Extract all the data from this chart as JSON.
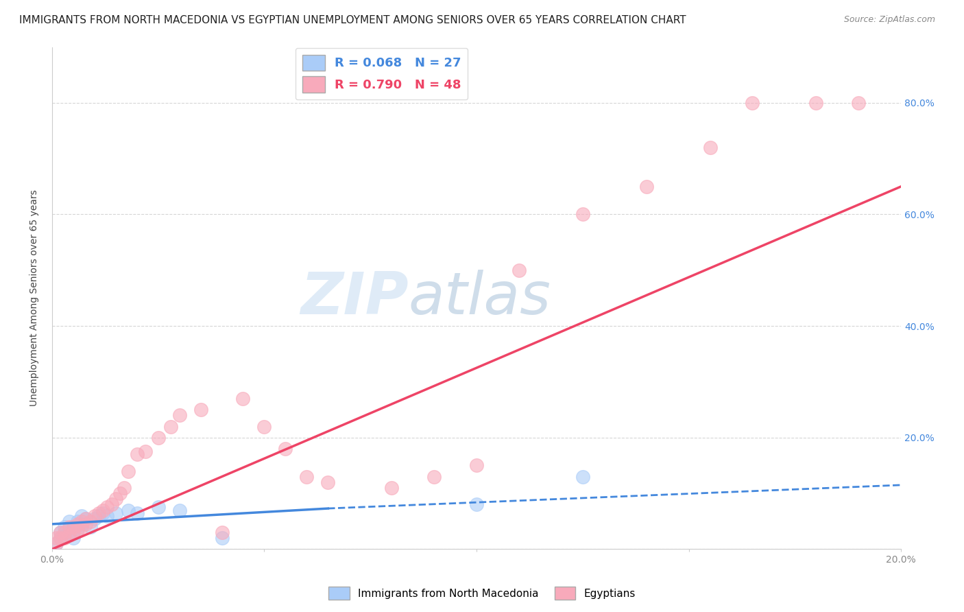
{
  "title": "IMMIGRANTS FROM NORTH MACEDONIA VS EGYPTIAN UNEMPLOYMENT AMONG SENIORS OVER 65 YEARS CORRELATION CHART",
  "source": "Source: ZipAtlas.com",
  "ylabel": "Unemployment Among Seniors over 65 years",
  "xlim": [
    0.0,
    0.2
  ],
  "ylim": [
    0.0,
    0.9
  ],
  "xticks": [
    0.0,
    0.05,
    0.1,
    0.15,
    0.2
  ],
  "xtick_labels": [
    "0.0%",
    "",
    "",
    "",
    "20.0%"
  ],
  "yticks": [
    0.0,
    0.2,
    0.4,
    0.6,
    0.8
  ],
  "ytick_labels_right": [
    "",
    "20.0%",
    "40.0%",
    "60.0%",
    "80.0%"
  ],
  "blue_color": "#aaccf8",
  "pink_color": "#f8aabb",
  "blue_line_color": "#4488dd",
  "pink_line_color": "#ee4466",
  "legend_blue_text": "R = 0.068   N = 27",
  "legend_pink_text": "R = 0.790   N = 48",
  "watermark_zip": "ZIP",
  "watermark_atlas": "atlas",
  "blue_scatter_x": [
    0.001,
    0.002,
    0.002,
    0.003,
    0.003,
    0.004,
    0.004,
    0.005,
    0.005,
    0.006,
    0.006,
    0.007,
    0.007,
    0.008,
    0.009,
    0.01,
    0.011,
    0.012,
    0.013,
    0.015,
    0.018,
    0.02,
    0.025,
    0.03,
    0.04,
    0.1,
    0.125
  ],
  "blue_scatter_y": [
    0.01,
    0.02,
    0.03,
    0.025,
    0.04,
    0.03,
    0.05,
    0.02,
    0.04,
    0.035,
    0.05,
    0.045,
    0.06,
    0.055,
    0.04,
    0.055,
    0.06,
    0.065,
    0.06,
    0.065,
    0.07,
    0.065,
    0.075,
    0.07,
    0.02,
    0.08,
    0.13
  ],
  "pink_scatter_x": [
    0.001,
    0.001,
    0.002,
    0.002,
    0.003,
    0.003,
    0.004,
    0.004,
    0.005,
    0.005,
    0.006,
    0.006,
    0.007,
    0.007,
    0.008,
    0.008,
    0.009,
    0.01,
    0.011,
    0.012,
    0.013,
    0.014,
    0.015,
    0.016,
    0.017,
    0.018,
    0.02,
    0.022,
    0.025,
    0.028,
    0.03,
    0.035,
    0.04,
    0.045,
    0.05,
    0.055,
    0.06,
    0.065,
    0.08,
    0.09,
    0.1,
    0.11,
    0.125,
    0.14,
    0.155,
    0.165,
    0.18,
    0.19
  ],
  "pink_scatter_y": [
    0.01,
    0.02,
    0.02,
    0.03,
    0.02,
    0.03,
    0.025,
    0.04,
    0.03,
    0.04,
    0.035,
    0.045,
    0.04,
    0.05,
    0.045,
    0.055,
    0.05,
    0.06,
    0.065,
    0.07,
    0.075,
    0.08,
    0.09,
    0.1,
    0.11,
    0.14,
    0.17,
    0.175,
    0.2,
    0.22,
    0.24,
    0.25,
    0.03,
    0.27,
    0.22,
    0.18,
    0.13,
    0.12,
    0.11,
    0.13,
    0.15,
    0.5,
    0.6,
    0.65,
    0.72,
    0.8,
    0.8,
    0.8
  ],
  "blue_line_x0": 0.0,
  "blue_line_x_solid_end": 0.065,
  "blue_line_x1": 0.2,
  "blue_line_y0": 0.045,
  "blue_line_y_solid_end": 0.073,
  "blue_line_y1": 0.115,
  "pink_line_x0": 0.0,
  "pink_line_x1": 0.2,
  "pink_line_y0": 0.0,
  "pink_line_y1": 0.65,
  "grid_color": "#cccccc",
  "background_color": "#ffffff",
  "title_fontsize": 11,
  "axis_label_fontsize": 10,
  "tick_fontsize": 10,
  "legend_fontsize": 12
}
